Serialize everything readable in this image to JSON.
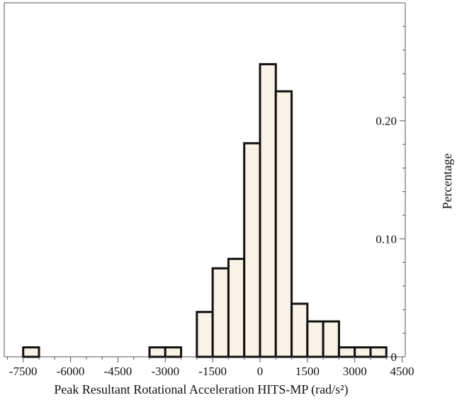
{
  "chart_data": {
    "type": "bar",
    "subtype": "histogram",
    "xlabel": "Peak Resultant Rotational Acceleration HITS-MP (rad/s²)",
    "ylabel": "Percentage",
    "x_ticks": [
      -7500,
      -6000,
      -4500,
      -3000,
      -1500,
      0,
      1500,
      3000,
      4500
    ],
    "x_tick_labels": [
      "-7500",
      "-6000",
      "-4500",
      "-3000",
      "-1500",
      "0",
      "1500",
      "3000",
      "4500"
    ],
    "y_ticks": [
      0,
      0.1,
      0.2
    ],
    "y_tick_labels": [
      "0",
      "0.10",
      "0.20"
    ],
    "xlim": [
      -8100,
      4600
    ],
    "ylim": [
      0,
      0.3
    ],
    "y_axis_position": "right",
    "bin_width": 500,
    "bins": [
      {
        "start": -7500,
        "end": -7000,
        "value": 0.008
      },
      {
        "start": -3500,
        "end": -3000,
        "value": 0.008
      },
      {
        "start": -3000,
        "end": -2500,
        "value": 0.008
      },
      {
        "start": -2000,
        "end": -1500,
        "value": 0.038
      },
      {
        "start": -1500,
        "end": -1000,
        "value": 0.075
      },
      {
        "start": -1000,
        "end": -500,
        "value": 0.083
      },
      {
        "start": -500,
        "end": 0,
        "value": 0.181
      },
      {
        "start": 0,
        "end": 500,
        "value": 0.248
      },
      {
        "start": 500,
        "end": 1000,
        "value": 0.225
      },
      {
        "start": 1000,
        "end": 1500,
        "value": 0.045
      },
      {
        "start": 1500,
        "end": 2000,
        "value": 0.03
      },
      {
        "start": 2000,
        "end": 2500,
        "value": 0.03
      },
      {
        "start": 2500,
        "end": 3000,
        "value": 0.008
      },
      {
        "start": 3000,
        "end": 3500,
        "value": 0.008
      },
      {
        "start": 3500,
        "end": 4000,
        "value": 0.008
      }
    ],
    "colors": {
      "bar_fill": "#f8f2e7",
      "bar_stroke": "#111111",
      "axis": "#555555"
    },
    "grid": false,
    "legend": "none"
  }
}
